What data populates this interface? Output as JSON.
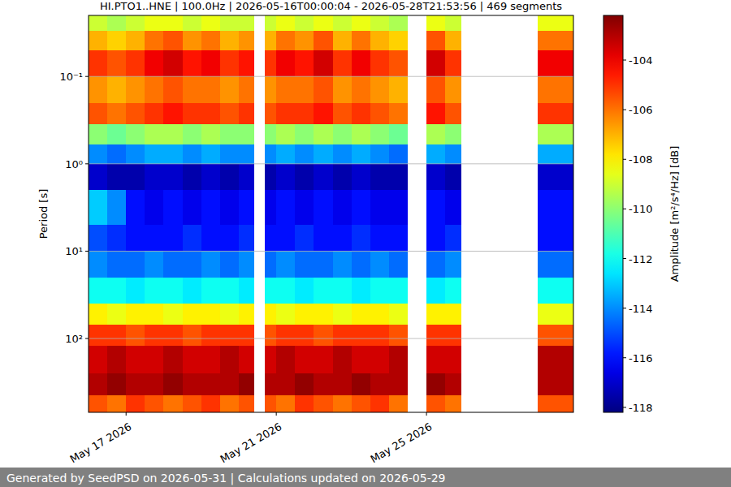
{
  "chart_data": {
    "type": "heatmap",
    "title": "HI.PTO1..HNE | 100.0Hz | 2026-05-16T00:00:04 - 2026-05-28T21:53:56 | 469 segments",
    "y_label": "Period [s]",
    "colorbar_label": "Amplitude [m²/s⁴/Hz] [dB]",
    "footer": "Generated by SeedPSD on 2026-05-31 | Calculations updated on 2026-05-29",
    "log": "y",
    "grid": true,
    "xlim": [
      "2026-05-16T00:00:04",
      "2026-05-28T21:53:56"
    ],
    "xticks": [
      {
        "value": "2026-05-17T00:00",
        "label": "May 17 2026"
      },
      {
        "value": "2026-05-21T00:00",
        "label": "May 21 2026"
      },
      {
        "value": "2026-05-25T00:00",
        "label": "May 25 2026"
      }
    ],
    "ylim": [
      0.02,
      700
    ],
    "yticks": [
      {
        "value": 0.1,
        "label": "10⁻¹"
      },
      {
        "value": 1,
        "label": "10⁰"
      },
      {
        "value": 10,
        "label": "10¹"
      },
      {
        "value": 100,
        "label": "10²"
      }
    ],
    "colorbar_range": [
      -118.2,
      -102.2
    ],
    "colorbar_ticks": [
      -118,
      -116,
      -114,
      -112,
      -110,
      -108,
      -106,
      -104
    ],
    "x_edges": [
      "2026-05-16T00:00",
      "2026-05-16T12:00",
      "2026-05-17T00:00",
      "2026-05-17T12:00",
      "2026-05-18T00:00",
      "2026-05-18T12:00",
      "2026-05-19T00:00",
      "2026-05-19T12:00",
      "2026-05-20T00:00",
      "2026-05-20T09:30",
      "2026-05-20T16:30",
      "2026-05-21T00:00",
      "2026-05-21T12:00",
      "2026-05-22T00:00",
      "2026-05-22T12:00",
      "2026-05-23T00:00",
      "2026-05-23T12:00",
      "2026-05-24T00:00",
      "2026-05-24T12:00",
      "2026-05-25T00:00",
      "2026-05-25T12:00",
      "2026-05-25T22:00",
      "2026-05-27T23:00",
      "2026-05-28T21:53:56"
    ],
    "y_edges": [
      0.02,
      0.03,
      0.05,
      0.1,
      0.2,
      0.35,
      0.6,
      1,
      2,
      5,
      10,
      20,
      40,
      70,
      120,
      250,
      450,
      700
    ],
    "values": [
      [
        -109,
        -109.5,
        -109,
        -108.5,
        -108.5,
        -109,
        -108.5,
        -109,
        -109,
        null,
        -109,
        -108.5,
        -109,
        -108.5,
        -109,
        -108.5,
        -109,
        -109.5,
        null,
        -108.5,
        -109,
        null,
        -108.5
      ],
      [
        -107,
        -107.5,
        -107,
        -106,
        -105.5,
        -106.5,
        -106,
        -107,
        -106.5,
        null,
        -107,
        -106,
        -106.5,
        -105.5,
        -107,
        -106,
        -107,
        -107.5,
        null,
        -105.5,
        -107,
        null,
        -106
      ],
      [
        -105,
        -105.5,
        -105,
        -104,
        -103.5,
        -104.5,
        -104,
        -105,
        -104.5,
        null,
        -105,
        -104,
        -104.5,
        -103.5,
        -105,
        -104,
        -105,
        -105.5,
        null,
        -103.5,
        -105,
        null,
        -104
      ],
      [
        -106.5,
        -107,
        -106.5,
        -106,
        -105.5,
        -106,
        -106,
        -106.5,
        -106,
        null,
        -106.5,
        -106,
        -106,
        -105.5,
        -106.5,
        -106,
        -106.5,
        -107,
        null,
        -105.5,
        -106.5,
        null,
        -106
      ],
      [
        -105.5,
        -106,
        -105.5,
        -105,
        -104.5,
        -105,
        -105,
        -105.5,
        -105,
        null,
        -105.5,
        -105,
        -105,
        -104.5,
        -105.5,
        -105,
        -105.5,
        -106,
        null,
        -104.5,
        -105.5,
        null,
        -105
      ],
      [
        -110,
        -110.5,
        -110,
        -109.5,
        -109.5,
        -110,
        -109.5,
        -110,
        -110,
        null,
        -110,
        -109.5,
        -110,
        -109.5,
        -110,
        -109.5,
        -110,
        -110.5,
        null,
        -109.5,
        -110,
        null,
        -109.5
      ],
      [
        -114,
        -114.5,
        -114,
        -113.5,
        -113.5,
        -114,
        -113.5,
        -114,
        -114,
        null,
        -114,
        -113.5,
        -114,
        -113.5,
        -114,
        -113.5,
        -114,
        -114.5,
        null,
        -113.5,
        -114,
        null,
        -113.5
      ],
      [
        -117,
        -117.5,
        -117.5,
        -117,
        -117,
        -117.5,
        -117,
        -117.5,
        -117,
        null,
        -117.5,
        -117,
        -117.5,
        -117,
        -117.5,
        -117,
        -117.5,
        -117.5,
        null,
        -117,
        -117.5,
        null,
        -117
      ],
      [
        -113,
        -114,
        -116,
        -116.5,
        -116,
        -116.5,
        -116,
        -116.5,
        -116,
        null,
        -116.5,
        -116,
        -116.5,
        -116,
        -116.5,
        -116,
        -116.5,
        -116.5,
        null,
        -116,
        -116.5,
        null,
        -116
      ],
      [
        -115,
        -115.5,
        -116,
        -116,
        -116,
        -115.5,
        -116,
        -116,
        -115.5,
        null,
        -116,
        -116,
        -115.5,
        -116,
        -116,
        -115.5,
        -116,
        -116,
        null,
        -116,
        -115.5,
        null,
        -116
      ],
      [
        -114,
        -114.5,
        -114.5,
        -114,
        -114.5,
        -114.5,
        -114,
        -114.5,
        -114,
        null,
        -114.5,
        -114,
        -114.5,
        -114.5,
        -114,
        -114.5,
        -114,
        -114.5,
        null,
        -114.5,
        -114,
        null,
        -114.5
      ],
      [
        -112,
        -112,
        -112.5,
        -112,
        -112,
        -112.5,
        -112,
        -112,
        -112.5,
        null,
        -112,
        -112,
        -112.5,
        -112,
        -112,
        -112.5,
        -112,
        -112,
        null,
        -112.5,
        -112,
        null,
        -112
      ],
      [
        -108,
        -108.5,
        -108,
        -108,
        -108.5,
        -108,
        -108,
        -108.5,
        -108,
        null,
        -108,
        -108.5,
        -108,
        -108,
        -108.5,
        -108,
        -108,
        -108.5,
        null,
        -108,
        -108,
        null,
        -108.5
      ],
      [
        -105,
        -105,
        -105.5,
        -105,
        -105,
        -105.5,
        -105,
        -105,
        -105,
        null,
        -105.5,
        -105,
        -105,
        -105.5,
        -105,
        -105,
        -105,
        -105.5,
        null,
        -105,
        -105,
        null,
        -105.5
      ],
      [
        -103.5,
        -103,
        -103.5,
        -103.5,
        -103,
        -103.5,
        -103.5,
        -103,
        -103.5,
        null,
        -103.5,
        -103,
        -103.5,
        -103.5,
        -103,
        -103.5,
        -103.5,
        -103,
        null,
        -103.5,
        -103.5,
        null,
        -103
      ],
      [
        -103,
        -102.5,
        -103,
        -103,
        -102.5,
        -103,
        -103,
        -103,
        -102.5,
        null,
        -103,
        -103,
        -102.5,
        -103,
        -103,
        -102.5,
        -103,
        -103,
        null,
        -102.5,
        -103,
        null,
        -103
      ],
      [
        -105.5,
        -106,
        -105,
        -105.5,
        -106,
        -105.5,
        -105,
        -106,
        -105.5,
        null,
        -105.5,
        -106,
        -105,
        -105.5,
        -106,
        -105.5,
        -105,
        -106,
        null,
        -105.5,
        -106,
        null,
        -105.5
      ]
    ]
  }
}
